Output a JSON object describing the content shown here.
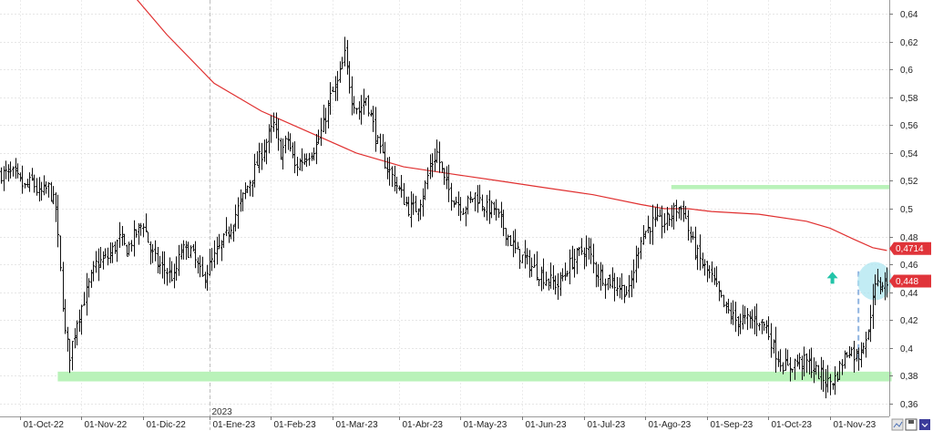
{
  "chart_data": {
    "type": "candlestick",
    "title": "",
    "xlabel": "",
    "ylabel": "",
    "ylim": [
      0.353,
      0.655
    ],
    "y_ticks": [
      "0,64",
      "0,62",
      "0,6",
      "0,58",
      "0,56",
      "0,54",
      "0,52",
      "0,5",
      "0,48",
      "0,46",
      "0,44",
      "0,42",
      "0,4",
      "0,38",
      "0,36"
    ],
    "y_tick_values": [
      0.64,
      0.62,
      0.6,
      0.58,
      0.56,
      0.54,
      0.52,
      0.5,
      0.48,
      0.46,
      0.44,
      0.42,
      0.4,
      0.38,
      0.36
    ],
    "x_labels": [
      "01-Oct-22",
      "01-Nov-22",
      "01-Dic-22",
      "01-Ene-23",
      "01-Feb-23",
      "01-Mar-23",
      "01-Abr-23",
      "01-May-23",
      "01-Jun-23",
      "01-Jul-23",
      "01-Ago-23",
      "01-Sep-23",
      "01-Oct-23",
      "01-Nov-23"
    ],
    "year_label": "2023",
    "grid": true,
    "series": [
      {
        "kind": "ohlc",
        "color": "#000000",
        "anchors": [
          [
            0,
            0.525
          ],
          [
            5,
            0.525
          ],
          [
            10,
            0.515
          ],
          [
            13,
            0.52
          ],
          [
            16,
            0.51
          ],
          [
            20,
            0.515
          ],
          [
            23,
            0.5
          ],
          [
            27,
            0.41
          ],
          [
            29,
            0.395
          ],
          [
            32,
            0.42
          ],
          [
            35,
            0.435
          ],
          [
            40,
            0.46
          ],
          [
            45,
            0.465
          ],
          [
            50,
            0.478
          ],
          [
            53,
            0.47
          ],
          [
            56,
            0.48
          ],
          [
            60,
            0.49
          ],
          [
            63,
            0.47
          ],
          [
            66,
            0.46
          ],
          [
            70,
            0.455
          ],
          [
            73,
            0.45
          ],
          [
            76,
            0.47
          ],
          [
            80,
            0.47
          ],
          [
            85,
            0.45
          ],
          [
            90,
            0.465
          ],
          [
            95,
            0.48
          ],
          [
            100,
            0.5
          ],
          [
            105,
            0.52
          ],
          [
            110,
            0.54
          ],
          [
            115,
            0.56
          ],
          [
            118,
            0.54
          ],
          [
            121,
            0.55
          ],
          [
            124,
            0.53
          ],
          [
            127,
            0.535
          ],
          [
            130,
            0.54
          ],
          [
            133,
            0.545
          ],
          [
            136,
            0.56
          ],
          [
            139,
            0.58
          ],
          [
            142,
            0.59
          ],
          [
            145,
            0.61
          ],
          [
            148,
            0.58
          ],
          [
            151,
            0.57
          ],
          [
            154,
            0.58
          ],
          [
            157,
            0.56
          ],
          [
            160,
            0.54
          ],
          [
            163,
            0.53
          ],
          [
            166,
            0.52
          ],
          [
            169,
            0.51
          ],
          [
            172,
            0.5
          ],
          [
            175,
            0.5
          ],
          [
            178,
            0.51
          ],
          [
            181,
            0.53
          ],
          [
            184,
            0.54
          ],
          [
            187,
            0.52
          ],
          [
            190,
            0.51
          ],
          [
            195,
            0.5
          ],
          [
            200,
            0.51
          ],
          [
            205,
            0.5
          ],
          [
            208,
            0.5
          ],
          [
            211,
            0.49
          ],
          [
            214,
            0.48
          ],
          [
            217,
            0.47
          ],
          [
            220,
            0.465
          ],
          [
            223,
            0.46
          ],
          [
            226,
            0.455
          ],
          [
            230,
            0.45
          ],
          [
            235,
            0.445
          ],
          [
            240,
            0.46
          ],
          [
            245,
            0.47
          ],
          [
            248,
            0.47
          ],
          [
            251,
            0.455
          ],
          [
            255,
            0.45
          ],
          [
            260,
            0.445
          ],
          [
            265,
            0.44
          ],
          [
            270,
            0.48
          ],
          [
            275,
            0.49
          ],
          [
            280,
            0.49
          ],
          [
            285,
            0.5
          ],
          [
            288,
            0.5
          ],
          [
            290,
            0.485
          ],
          [
            293,
            0.47
          ],
          [
            296,
            0.46
          ],
          [
            300,
            0.45
          ],
          [
            305,
            0.43
          ],
          [
            310,
            0.42
          ],
          [
            315,
            0.42
          ],
          [
            320,
            0.42
          ],
          [
            323,
            0.415
          ],
          [
            326,
            0.4
          ],
          [
            329,
            0.39
          ],
          [
            332,
            0.385
          ],
          [
            335,
            0.39
          ],
          [
            340,
            0.39
          ],
          [
            343,
            0.385
          ],
          [
            346,
            0.38
          ],
          [
            349,
            0.375
          ],
          [
            352,
            0.378
          ],
          [
            355,
            0.39
          ],
          [
            358,
            0.4
          ],
          [
            360,
            0.395
          ],
          [
            362,
            0.395
          ],
          [
            364,
            0.405
          ],
          [
            366,
            0.41
          ],
          [
            368,
            0.44
          ],
          [
            370,
            0.445
          ],
          [
            374,
            0.448
          ]
        ]
      },
      {
        "kind": "moving-average",
        "color": "#e03030",
        "points": [
          [
            50,
            0.665
          ],
          [
            70,
            0.625
          ],
          [
            90,
            0.59
          ],
          [
            110,
            0.57
          ],
          [
            130,
            0.555
          ],
          [
            150,
            0.54
          ],
          [
            170,
            0.53
          ],
          [
            190,
            0.525
          ],
          [
            210,
            0.52
          ],
          [
            230,
            0.515
          ],
          [
            250,
            0.51
          ],
          [
            270,
            0.503
          ],
          [
            280,
            0.5
          ],
          [
            290,
            0.5
          ],
          [
            300,
            0.498
          ],
          [
            320,
            0.496
          ],
          [
            340,
            0.491
          ],
          [
            350,
            0.486
          ],
          [
            360,
            0.478
          ],
          [
            368,
            0.472
          ],
          [
            374,
            0.47
          ]
        ]
      }
    ],
    "annotations": [
      {
        "kind": "support-band",
        "from_x": 24,
        "to_x": 376,
        "y_low": 0.376,
        "y_high": 0.383,
        "color": "#b9f2b9"
      },
      {
        "kind": "resistance-band",
        "from_x": 283,
        "to_x": 375,
        "y_low": 0.514,
        "y_high": 0.517,
        "color": "#b9f2b9"
      },
      {
        "kind": "vertical-dashed-line",
        "x": 362,
        "y_low": 0.39,
        "y_high": 0.455,
        "color": "#8fb4e0"
      },
      {
        "kind": "arrow-up",
        "x": 351,
        "y": 0.45,
        "color": "#22c4a8"
      },
      {
        "kind": "highlight-ellipse",
        "x": 372,
        "y": 0.448,
        "color": "#aee6f0"
      },
      {
        "kind": "year-separator",
        "x": 88
      }
    ],
    "price_badges": [
      {
        "label": "0,4714",
        "value": 0.4714,
        "color": "#e0343a"
      },
      {
        "label": "0,448",
        "value": 0.448,
        "color": "#e0343a"
      }
    ]
  }
}
